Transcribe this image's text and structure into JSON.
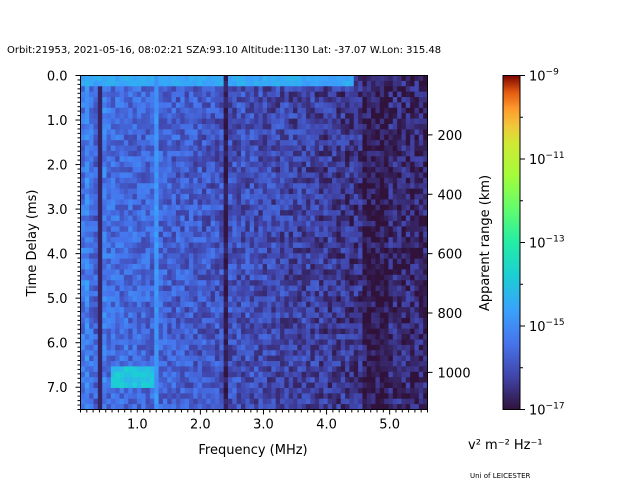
{
  "title": "Orbit:21953, 2021-05-16, 08:02:21 SZA:93.10 Altitude:1130 Lat: -37.07 W.Lon: 315.48",
  "credit": "Uni of LEICESTER",
  "colorbar_unit": "v² m⁻² Hz⁻¹",
  "chart_data": {
    "type": "heatmap",
    "xlabel": "Frequency (MHz)",
    "ylabel": "Time Delay (ms)",
    "y2label": "Apparent range (km)",
    "xlim": [
      0.1,
      5.6
    ],
    "ylim": [
      7.5,
      0.0
    ],
    "y2lim_km": [
      0,
      1125
    ],
    "x_ticks": [
      "1.0",
      "2.0",
      "3.0",
      "4.0",
      "5.0"
    ],
    "x_tick_values": [
      1.0,
      2.0,
      3.0,
      4.0,
      5.0
    ],
    "y_ticks": [
      "0.0",
      "1.0",
      "2.0",
      "3.0",
      "4.0",
      "5.0",
      "6.0",
      "7.0"
    ],
    "y_tick_values": [
      0,
      1,
      2,
      3,
      4,
      5,
      6,
      7
    ],
    "y2_ticks": [
      "200",
      "400",
      "600",
      "800",
      "1000"
    ],
    "y2_tick_values": [
      200,
      400,
      600,
      800,
      1000
    ],
    "colorbar": {
      "scale": "log",
      "range": [
        1e-17,
        1e-09
      ],
      "tick_bases": [
        "10",
        "10",
        "10",
        "10",
        "10"
      ],
      "tick_exponents": [
        "−17",
        "−15",
        "−13",
        "−11",
        "−9"
      ],
      "tick_values": [
        1e-17,
        1e-15,
        1e-13,
        1e-11,
        1e-09
      ],
      "colormap": "turbo"
    },
    "features": [
      {
        "description": "strong horizontal band at 0.15 ms across most frequencies",
        "delay_ms": 0.15,
        "log10_value": -14.5
      },
      {
        "description": "vertical line near 1.32 MHz",
        "freq_mhz": 1.32,
        "log10_value": -14.8
      },
      {
        "description": "dark vertical line near 2.38 MHz",
        "freq_mhz": 2.38,
        "log10_value": -16.8
      },
      {
        "description": "bright feature near 0.9 MHz at 6.8 ms",
        "freq_mhz": 0.95,
        "delay_ms": 6.8,
        "log10_value": -14.0
      }
    ]
  }
}
